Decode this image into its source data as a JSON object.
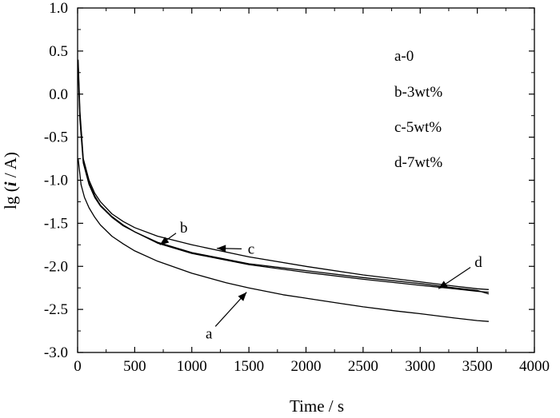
{
  "chart_data": {
    "type": "line",
    "xlabel": "Time / s",
    "ylabel": {
      "prefix": "lg (",
      "italic": "i",
      "suffix": " / A)"
    },
    "xlim": [
      0,
      4000
    ],
    "ylim": [
      -3.0,
      1.0
    ],
    "x_ticks": [
      "0",
      "500",
      "1000",
      "1500",
      "2000",
      "2500",
      "3000",
      "3500",
      "4000"
    ],
    "y_ticks": [
      "1.0",
      "0.5",
      "0.0",
      "-0.5",
      "-1.0",
      "-1.5",
      "-2.0",
      "-2.5",
      "-3.0"
    ],
    "legend": [
      "a-0",
      "b-3wt%",
      "c-5wt%",
      "d-7wt%"
    ],
    "legend_position": "top-right",
    "grid": false,
    "series": [
      {
        "name": "a",
        "x": [
          5,
          30,
          60,
          100,
          150,
          200,
          300,
          400,
          500,
          700,
          1000,
          1300,
          1500,
          1800,
          2000,
          2300,
          2500,
          2800,
          3000,
          3300,
          3500,
          3600
        ],
        "y": [
          -0.75,
          -1.05,
          -1.2,
          -1.32,
          -1.43,
          -1.52,
          -1.65,
          -1.74,
          -1.82,
          -1.94,
          -2.08,
          -2.19,
          -2.25,
          -2.33,
          -2.37,
          -2.43,
          -2.47,
          -2.52,
          -2.55,
          -2.6,
          -2.63,
          -2.64
        ]
      },
      {
        "name": "b",
        "x": [
          5,
          20,
          50,
          100,
          150,
          200,
          300,
          400,
          500,
          700,
          1000,
          1500,
          2000,
          2500,
          3000,
          3300,
          3500,
          3600
        ],
        "y": [
          0.3,
          -0.3,
          -0.8,
          -1.05,
          -1.2,
          -1.3,
          -1.43,
          -1.53,
          -1.6,
          -1.73,
          -1.85,
          -1.98,
          -2.07,
          -2.15,
          -2.22,
          -2.26,
          -2.29,
          -2.3
        ]
      },
      {
        "name": "c",
        "x": [
          5,
          20,
          50,
          100,
          150,
          200,
          300,
          400,
          500,
          700,
          1000,
          1500,
          2000,
          2500,
          3000,
          3300,
          3500,
          3600
        ],
        "y": [
          0.4,
          -0.2,
          -0.75,
          -1.0,
          -1.15,
          -1.25,
          -1.39,
          -1.48,
          -1.55,
          -1.65,
          -1.75,
          -1.89,
          -2.0,
          -2.1,
          -2.18,
          -2.23,
          -2.26,
          -2.27
        ]
      },
      {
        "name": "d",
        "x": [
          5,
          20,
          50,
          100,
          150,
          200,
          300,
          400,
          500,
          700,
          1000,
          1500,
          2000,
          2500,
          3000,
          3300,
          3500,
          3600
        ],
        "y": [
          0.35,
          -0.25,
          -0.78,
          -1.03,
          -1.18,
          -1.29,
          -1.42,
          -1.52,
          -1.6,
          -1.72,
          -1.84,
          -1.97,
          -2.05,
          -2.13,
          -2.2,
          -2.25,
          -2.28,
          -2.32
        ]
      }
    ],
    "annotations": [
      {
        "label": "a",
        "text_at": [
          1150,
          -2.78
        ],
        "arrow_to": [
          1480,
          -2.3
        ]
      },
      {
        "label": "b",
        "text_at": [
          930,
          -1.55
        ],
        "arrow_to": [
          720,
          -1.75
        ]
      },
      {
        "label": "c",
        "text_at": [
          1520,
          -1.8
        ],
        "arrow_to": [
          1220,
          -1.79
        ]
      },
      {
        "label": "d",
        "text_at": [
          3510,
          -1.95
        ],
        "arrow_to": [
          3160,
          -2.26
        ]
      }
    ]
  }
}
